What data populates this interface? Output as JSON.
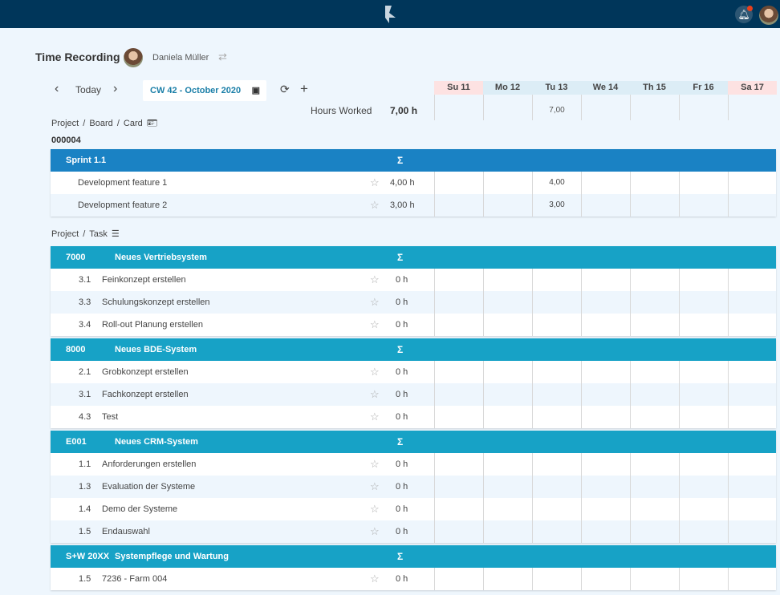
{
  "header": {
    "logo": "app-logo",
    "notifications_icon": "bell-icon",
    "colors": {
      "topbar": "#00365a",
      "sprint": "#1a82c4",
      "project": "#17a2c6"
    }
  },
  "title": "Time Recording",
  "user": {
    "name": "Daniela Müller"
  },
  "nav": {
    "prev": "‹",
    "today": "Today",
    "next": "›",
    "week": "CW 42 - October 2020",
    "refresh": "⟳",
    "add": "+"
  },
  "hours_worked": {
    "label": "Hours Worked",
    "value": "7,00 h"
  },
  "days": [
    {
      "label": "Su 11",
      "weekend": true,
      "total": ""
    },
    {
      "label": "Mo 12",
      "total": ""
    },
    {
      "label": "Tu 13",
      "total": "7,00"
    },
    {
      "label": "We 14",
      "total": ""
    },
    {
      "label": "Th 15",
      "total": ""
    },
    {
      "label": "Fr 16",
      "total": ""
    },
    {
      "label": "Sa 17",
      "weekend": true,
      "total": ""
    }
  ],
  "card_section": {
    "crumb": "Project  /  Board  /  Card",
    "code": "000004",
    "groups": [
      {
        "id": "",
        "name": "Sprint 1.1",
        "sigma": "Σ",
        "rows": [
          {
            "num": "",
            "name": "Development feature 1",
            "hours": "4,00 h",
            "days": [
              "",
              "",
              "4,00",
              "",
              "",
              "",
              ""
            ]
          },
          {
            "num": "",
            "name": "Development feature 2",
            "hours": "3,00 h",
            "days": [
              "",
              "",
              "3,00",
              "",
              "",
              "",
              ""
            ]
          }
        ]
      }
    ]
  },
  "task_section": {
    "crumb": "Project  /  Task",
    "groups": [
      {
        "id": "7000",
        "name": "Neues Vertriebsystem",
        "sigma": "Σ",
        "rows": [
          {
            "num": "3.1",
            "name": "Feinkonzept erstellen",
            "hours": "0 h"
          },
          {
            "num": "3.3",
            "name": "Schulungskonzept erstellen",
            "hours": "0 h"
          },
          {
            "num": "3.4",
            "name": "Roll-out Planung erstellen",
            "hours": "0 h"
          }
        ]
      },
      {
        "id": "8000",
        "name": "Neues BDE-System",
        "sigma": "Σ",
        "rows": [
          {
            "num": "2.1",
            "name": "Grobkonzept erstellen",
            "hours": "0 h"
          },
          {
            "num": "3.1",
            "name": "Fachkonzept erstellen",
            "hours": "0 h"
          },
          {
            "num": "4.3",
            "name": "Test",
            "hours": "0 h"
          }
        ]
      },
      {
        "id": "E001",
        "name": "Neues CRM-System",
        "sigma": "Σ",
        "rows": [
          {
            "num": "1.1",
            "name": "Anforderungen erstellen",
            "hours": "0 h"
          },
          {
            "num": "1.3",
            "name": "Evaluation der Systeme",
            "hours": "0 h"
          },
          {
            "num": "1.4",
            "name": "Demo der Systeme",
            "hours": "0 h"
          },
          {
            "num": "1.5",
            "name": "Endauswahl",
            "hours": "0 h"
          }
        ]
      },
      {
        "id": "S+W 20XX",
        "name": "Systempflege und Wartung",
        "sigma": "Σ",
        "rows": [
          {
            "num": "1.5",
            "name": "7236 - Farm 004",
            "hours": "0 h"
          }
        ]
      }
    ]
  }
}
